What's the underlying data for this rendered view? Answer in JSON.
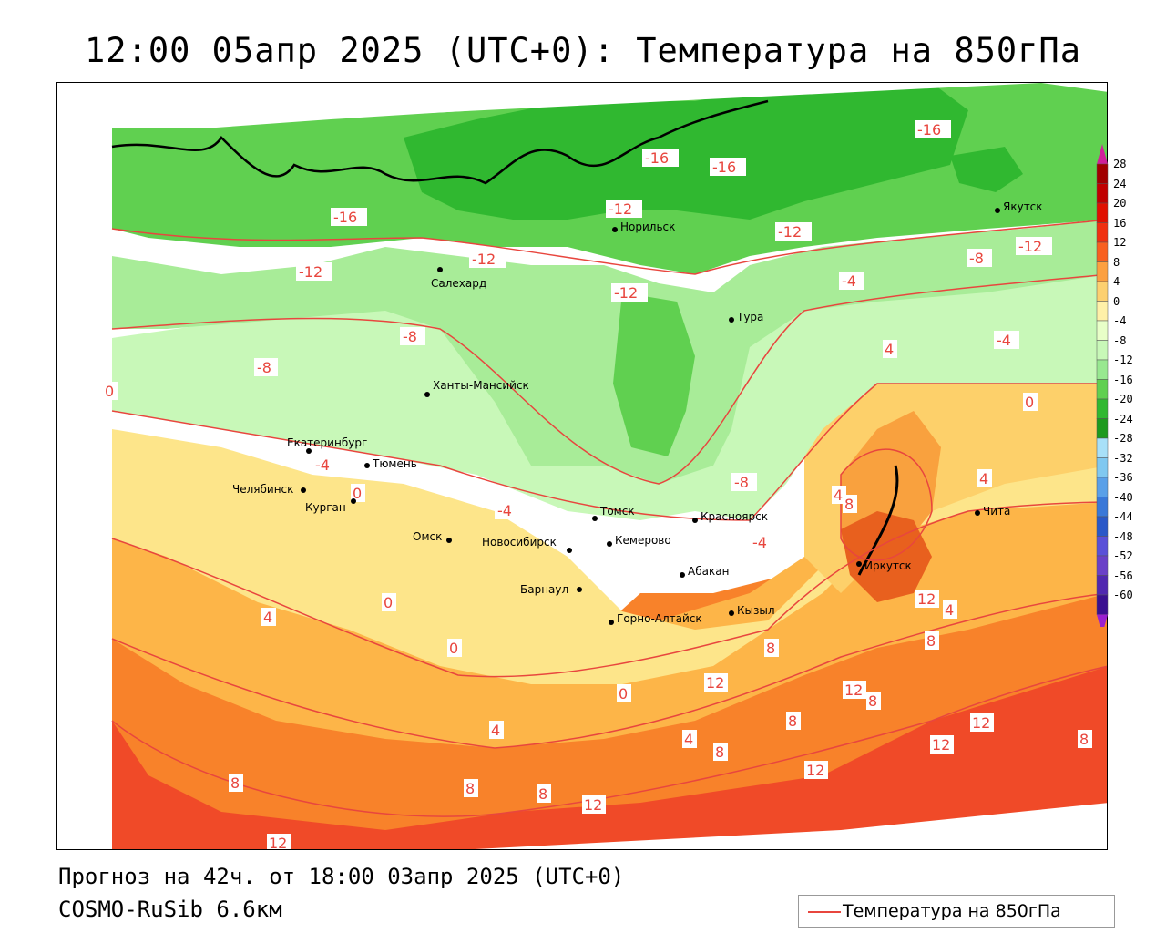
{
  "header": {
    "title": "12:00 05апр 2025 (UTC+0): Температура на 850гПа"
  },
  "footer": {
    "forecast": "Прогноз на 42ч. от 18:00 03апр 2025 (UTC+0)",
    "model": "COSMO-RuSib 6.6км"
  },
  "legend": {
    "label": "Температура на 850гПа",
    "line_color": "#e8463e"
  },
  "colorbar": {
    "labels": [
      "28",
      "24",
      "20",
      "16",
      "12",
      "8",
      "4",
      "0",
      "-4",
      "-8",
      "-12",
      "-16",
      "-20",
      "-24",
      "-28",
      "-32",
      "-36",
      "-40",
      "-44",
      "-48",
      "-52",
      "-56",
      "-60"
    ],
    "colors": [
      "#a10000",
      "#c00000",
      "#e01000",
      "#f03010",
      "#f86020",
      "#fca040",
      "#fdd070",
      "#fff0a8",
      "#e8ffc8",
      "#c8f8b8",
      "#98e890",
      "#60d050",
      "#30b830",
      "#1e9a1e",
      "#a8e0f8",
      "#80c8f0",
      "#5aa0e8",
      "#3a78d8",
      "#2a58c8",
      "#5a50d8",
      "#6a40c8",
      "#5028b0",
      "#3a1090"
    ],
    "top_arrow_color": "#d0209a",
    "bottom_arrow_color": "#9a20d0"
  },
  "cities": [
    {
      "name": "Якутск"
    },
    {
      "name": "Норильск"
    },
    {
      "name": "Салехард"
    },
    {
      "name": "Тура"
    },
    {
      "name": "Ханты-Мансийск"
    },
    {
      "name": "Екатеринбург"
    },
    {
      "name": "Тюмень"
    },
    {
      "name": "Челябинск"
    },
    {
      "name": "Курган"
    },
    {
      "name": "Омск"
    },
    {
      "name": "Новосибирск"
    },
    {
      "name": "Томск"
    },
    {
      "name": "Кемерово"
    },
    {
      "name": "Красноярск"
    },
    {
      "name": "Барнаул"
    },
    {
      "name": "Абакан"
    },
    {
      "name": "Иркутск"
    },
    {
      "name": "Чита"
    },
    {
      "name": "Кызыл"
    },
    {
      "name": "Горно-Алтайск"
    }
  ],
  "isotherm_labels": [
    "-16",
    "-16",
    "-16",
    "-16",
    "-12",
    "-12",
    "-12",
    "-12",
    "-12",
    "-12",
    "-8",
    "-8",
    "-8",
    "-8",
    "-4",
    "-4",
    "-4",
    "-4",
    "-4",
    "0",
    "0",
    "0",
    "0",
    "0",
    "0",
    "4",
    "4",
    "4",
    "4",
    "4",
    "4",
    "4",
    "8",
    "8",
    "8",
    "8",
    "8",
    "8",
    "8",
    "8",
    "8",
    "8",
    "12",
    "12",
    "12",
    "12",
    "12",
    "12",
    "12",
    "12"
  ]
}
